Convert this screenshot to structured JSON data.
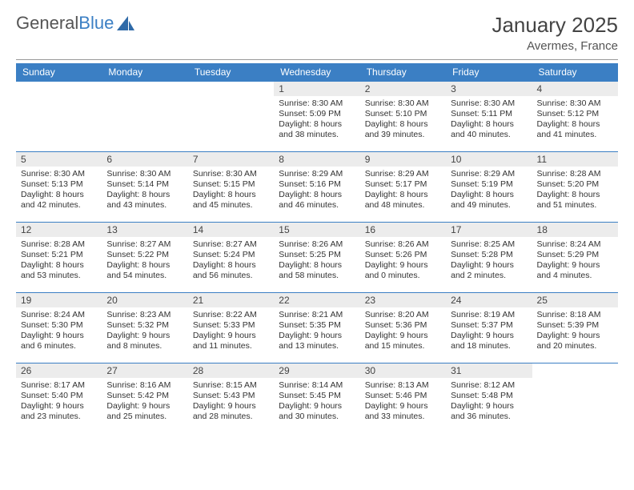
{
  "logo": {
    "text1": "General",
    "text2": "Blue"
  },
  "header": {
    "month": "January 2025",
    "location": "Avermes, France"
  },
  "colors": {
    "header_bg": "#3b7fc4",
    "header_text": "#ffffff",
    "daynum_bg": "#ececec",
    "border": "#3b7fc4",
    "text": "#333333"
  },
  "dayNames": [
    "Sunday",
    "Monday",
    "Tuesday",
    "Wednesday",
    "Thursday",
    "Friday",
    "Saturday"
  ],
  "weeks": [
    [
      null,
      null,
      null,
      {
        "n": "1",
        "sr": "8:30 AM",
        "ss": "5:09 PM",
        "dl": "8 hours and 38 minutes."
      },
      {
        "n": "2",
        "sr": "8:30 AM",
        "ss": "5:10 PM",
        "dl": "8 hours and 39 minutes."
      },
      {
        "n": "3",
        "sr": "8:30 AM",
        "ss": "5:11 PM",
        "dl": "8 hours and 40 minutes."
      },
      {
        "n": "4",
        "sr": "8:30 AM",
        "ss": "5:12 PM",
        "dl": "8 hours and 41 minutes."
      }
    ],
    [
      {
        "n": "5",
        "sr": "8:30 AM",
        "ss": "5:13 PM",
        "dl": "8 hours and 42 minutes."
      },
      {
        "n": "6",
        "sr": "8:30 AM",
        "ss": "5:14 PM",
        "dl": "8 hours and 43 minutes."
      },
      {
        "n": "7",
        "sr": "8:30 AM",
        "ss": "5:15 PM",
        "dl": "8 hours and 45 minutes."
      },
      {
        "n": "8",
        "sr": "8:29 AM",
        "ss": "5:16 PM",
        "dl": "8 hours and 46 minutes."
      },
      {
        "n": "9",
        "sr": "8:29 AM",
        "ss": "5:17 PM",
        "dl": "8 hours and 48 minutes."
      },
      {
        "n": "10",
        "sr": "8:29 AM",
        "ss": "5:19 PM",
        "dl": "8 hours and 49 minutes."
      },
      {
        "n": "11",
        "sr": "8:28 AM",
        "ss": "5:20 PM",
        "dl": "8 hours and 51 minutes."
      }
    ],
    [
      {
        "n": "12",
        "sr": "8:28 AM",
        "ss": "5:21 PM",
        "dl": "8 hours and 53 minutes."
      },
      {
        "n": "13",
        "sr": "8:27 AM",
        "ss": "5:22 PM",
        "dl": "8 hours and 54 minutes."
      },
      {
        "n": "14",
        "sr": "8:27 AM",
        "ss": "5:24 PM",
        "dl": "8 hours and 56 minutes."
      },
      {
        "n": "15",
        "sr": "8:26 AM",
        "ss": "5:25 PM",
        "dl": "8 hours and 58 minutes."
      },
      {
        "n": "16",
        "sr": "8:26 AM",
        "ss": "5:26 PM",
        "dl": "9 hours and 0 minutes."
      },
      {
        "n": "17",
        "sr": "8:25 AM",
        "ss": "5:28 PM",
        "dl": "9 hours and 2 minutes."
      },
      {
        "n": "18",
        "sr": "8:24 AM",
        "ss": "5:29 PM",
        "dl": "9 hours and 4 minutes."
      }
    ],
    [
      {
        "n": "19",
        "sr": "8:24 AM",
        "ss": "5:30 PM",
        "dl": "9 hours and 6 minutes."
      },
      {
        "n": "20",
        "sr": "8:23 AM",
        "ss": "5:32 PM",
        "dl": "9 hours and 8 minutes."
      },
      {
        "n": "21",
        "sr": "8:22 AM",
        "ss": "5:33 PM",
        "dl": "9 hours and 11 minutes."
      },
      {
        "n": "22",
        "sr": "8:21 AM",
        "ss": "5:35 PM",
        "dl": "9 hours and 13 minutes."
      },
      {
        "n": "23",
        "sr": "8:20 AM",
        "ss": "5:36 PM",
        "dl": "9 hours and 15 minutes."
      },
      {
        "n": "24",
        "sr": "8:19 AM",
        "ss": "5:37 PM",
        "dl": "9 hours and 18 minutes."
      },
      {
        "n": "25",
        "sr": "8:18 AM",
        "ss": "5:39 PM",
        "dl": "9 hours and 20 minutes."
      }
    ],
    [
      {
        "n": "26",
        "sr": "8:17 AM",
        "ss": "5:40 PM",
        "dl": "9 hours and 23 minutes."
      },
      {
        "n": "27",
        "sr": "8:16 AM",
        "ss": "5:42 PM",
        "dl": "9 hours and 25 minutes."
      },
      {
        "n": "28",
        "sr": "8:15 AM",
        "ss": "5:43 PM",
        "dl": "9 hours and 28 minutes."
      },
      {
        "n": "29",
        "sr": "8:14 AM",
        "ss": "5:45 PM",
        "dl": "9 hours and 30 minutes."
      },
      {
        "n": "30",
        "sr": "8:13 AM",
        "ss": "5:46 PM",
        "dl": "9 hours and 33 minutes."
      },
      {
        "n": "31",
        "sr": "8:12 AM",
        "ss": "5:48 PM",
        "dl": "9 hours and 36 minutes."
      },
      null
    ]
  ],
  "labels": {
    "sunrise": "Sunrise:",
    "sunset": "Sunset:",
    "daylight": "Daylight:"
  }
}
